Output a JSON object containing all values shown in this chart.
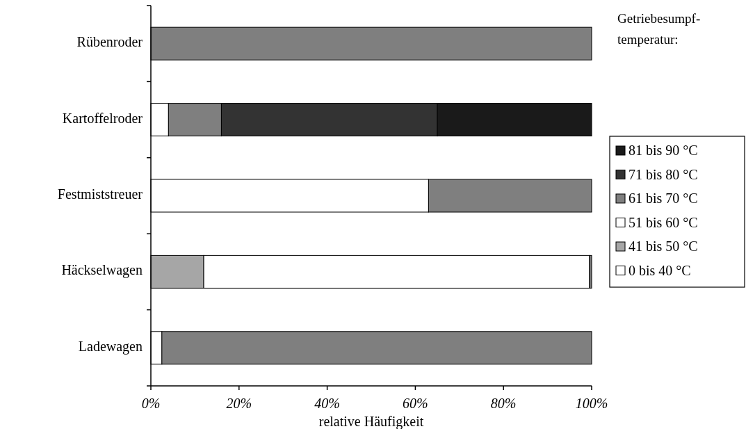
{
  "chart_data": {
    "type": "bar",
    "orientation": "horizontal",
    "stacked": true,
    "categories": [
      "Rübenroder",
      "Kartoffelroder",
      "Festmiststreuer",
      "Häckselwagen",
      "Ladewagen"
    ],
    "series": [
      {
        "name": "0 bis 40 °C",
        "color": "#ffffff",
        "values": [
          0,
          0,
          0,
          null,
          0
        ]
      },
      {
        "name": "41 bis 50 °C",
        "color": "#a6a6a6",
        "values": [
          0,
          0,
          0,
          12,
          0
        ]
      },
      {
        "name": "51 bis 60 °C",
        "color": "#ffffff",
        "values": [
          0,
          4,
          63,
          87.5,
          2.5
        ]
      },
      {
        "name": "61 bis 70 °C",
        "color": "#7f7f7f",
        "values": [
          100,
          12,
          37,
          0.5,
          97.5
        ]
      },
      {
        "name": "71 bis 80 °C",
        "color": "#333333",
        "values": [
          0,
          49,
          0,
          0,
          0
        ]
      },
      {
        "name": "81 bis 90 °C",
        "color": "#1a1a1a",
        "values": [
          0,
          35,
          0,
          0,
          0
        ]
      }
    ],
    "xlim": [
      0,
      100
    ],
    "xticks": [
      {
        "value": 0,
        "label": "0%"
      },
      {
        "value": 20,
        "label": "20%"
      },
      {
        "value": 40,
        "label": "40%"
      },
      {
        "value": 60,
        "label": "60%"
      },
      {
        "value": 80,
        "label": "80%"
      },
      {
        "value": 100,
        "label": "100%"
      }
    ],
    "xlabel": "relative Häufigkeit",
    "legend_title": "Getriebesumpf-\ntemperatur:",
    "legend": "right",
    "grid": false
  }
}
